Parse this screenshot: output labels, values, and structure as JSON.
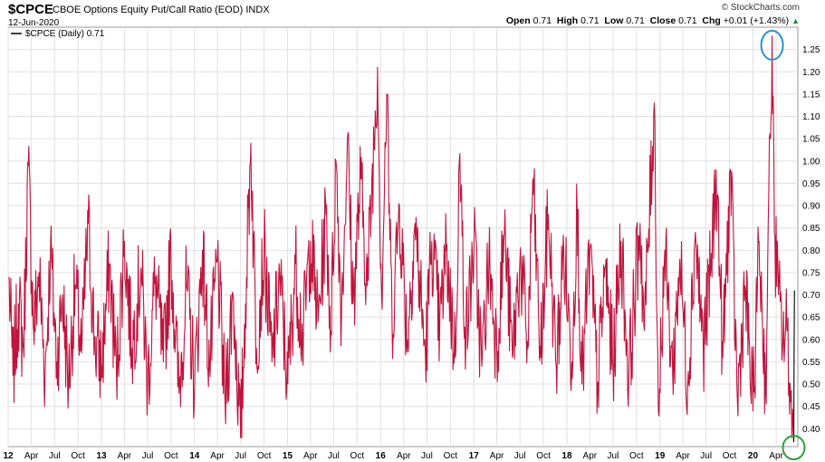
{
  "header": {
    "symbol": "$CPCE",
    "subtitle": "CBOE Options Equity Put/Call Ratio (EOD)  INDX",
    "date": "12-Jun-2020",
    "watermark": "© StockCharts.com",
    "open_label": "Open",
    "open_value": "0.71",
    "high_label": "High",
    "high_value": "0.71",
    "low_label": "Low",
    "low_value": "0.71",
    "close_label": "Close",
    "close_value": "0.71",
    "chg_label": "Chg",
    "chg_value": "+0.01 (+1.43%)",
    "chg_arrow": "▲"
  },
  "colors": {
    "line": "#c0143c",
    "grid": "#e0e0e0",
    "highlight_top": "#2a8fd6",
    "highlight_bottom": "#2e9e3e"
  },
  "chart_data": {
    "type": "line",
    "title": "CBOE Options Equity Put/Call Ratio (EOD)",
    "series": [
      {
        "name": "$CPCE (Daily) 0.71",
        "points": [
          [
            "2012-01-03",
            0.74
          ],
          [
            "2012-01-20",
            0.52
          ],
          [
            "2012-02-10",
            0.68
          ],
          [
            "2012-03-01",
            0.58
          ],
          [
            "2012-03-20",
            0.99
          ],
          [
            "2012-04-10",
            0.62
          ],
          [
            "2012-05-01",
            0.75
          ],
          [
            "2012-05-25",
            0.52
          ],
          [
            "2012-06-15",
            0.8
          ],
          [
            "2012-07-10",
            0.55
          ],
          [
            "2012-08-01",
            0.7
          ],
          [
            "2012-08-25",
            0.5
          ],
          [
            "2012-09-20",
            0.72
          ],
          [
            "2012-10-15",
            0.57
          ],
          [
            "2012-11-10",
            0.86
          ],
          [
            "2012-12-05",
            0.6
          ],
          [
            "2013-01-02",
            0.54
          ],
          [
            "2013-02-01",
            0.77
          ],
          [
            "2013-03-01",
            0.52
          ],
          [
            "2013-04-01",
            0.82
          ],
          [
            "2013-05-01",
            0.58
          ],
          [
            "2013-06-05",
            0.76
          ],
          [
            "2013-07-01",
            0.5
          ],
          [
            "2013-08-01",
            0.74
          ],
          [
            "2013-09-01",
            0.55
          ],
          [
            "2013-10-01",
            0.79
          ],
          [
            "2013-11-01",
            0.48
          ],
          [
            "2013-12-01",
            0.72
          ],
          [
            "2014-01-02",
            0.5
          ],
          [
            "2014-02-01",
            0.8
          ],
          [
            "2014-03-01",
            0.54
          ],
          [
            "2014-04-01",
            0.78
          ],
          [
            "2014-05-01",
            0.46
          ],
          [
            "2014-06-01",
            0.7
          ],
          [
            "2014-07-01",
            0.38
          ],
          [
            "2014-07-20",
            0.68
          ],
          [
            "2014-08-10",
            1.04
          ],
          [
            "2014-09-01",
            0.58
          ],
          [
            "2014-10-01",
            0.8
          ],
          [
            "2014-11-01",
            0.55
          ],
          [
            "2014-12-01",
            0.74
          ],
          [
            "2015-01-02",
            0.5
          ],
          [
            "2015-02-01",
            0.77
          ],
          [
            "2015-03-01",
            0.6
          ],
          [
            "2015-04-01",
            0.82
          ],
          [
            "2015-05-01",
            0.64
          ],
          [
            "2015-06-01",
            0.88
          ],
          [
            "2015-06-20",
            0.62
          ],
          [
            "2015-07-10",
            1.0
          ],
          [
            "2015-08-01",
            0.66
          ],
          [
            "2015-08-24",
            1.05
          ],
          [
            "2015-09-15",
            0.68
          ],
          [
            "2015-10-15",
            0.96
          ],
          [
            "2015-11-10",
            0.72
          ],
          [
            "2015-12-20",
            1.21
          ],
          [
            "2016-01-05",
            0.7
          ],
          [
            "2016-01-25",
            1.15
          ],
          [
            "2016-02-15",
            0.64
          ],
          [
            "2016-03-15",
            0.9
          ],
          [
            "2016-04-15",
            0.6
          ],
          [
            "2016-05-15",
            0.86
          ],
          [
            "2016-06-25",
            0.56
          ],
          [
            "2016-07-20",
            0.82
          ],
          [
            "2016-08-20",
            0.62
          ],
          [
            "2016-09-15",
            0.8
          ],
          [
            "2016-10-20",
            0.56
          ],
          [
            "2016-11-05",
            1.0
          ],
          [
            "2016-12-01",
            0.6
          ],
          [
            "2017-01-02",
            0.82
          ],
          [
            "2017-02-01",
            0.54
          ],
          [
            "2017-03-01",
            0.78
          ],
          [
            "2017-04-01",
            0.58
          ],
          [
            "2017-05-01",
            0.84
          ],
          [
            "2017-06-01",
            0.56
          ],
          [
            "2017-07-01",
            0.78
          ],
          [
            "2017-08-01",
            0.58
          ],
          [
            "2017-08-20",
            0.96
          ],
          [
            "2017-09-20",
            0.56
          ],
          [
            "2017-10-20",
            0.88
          ],
          [
            "2017-11-20",
            0.54
          ],
          [
            "2017-12-20",
            0.8
          ],
          [
            "2018-01-20",
            0.55
          ],
          [
            "2018-02-10",
            0.9
          ],
          [
            "2018-03-01",
            0.5
          ],
          [
            "2018-04-01",
            0.8
          ],
          [
            "2018-05-01",
            0.5
          ],
          [
            "2018-06-01",
            0.76
          ],
          [
            "2018-07-01",
            0.54
          ],
          [
            "2018-08-01",
            0.82
          ],
          [
            "2018-09-01",
            0.52
          ],
          [
            "2018-10-15",
            0.86
          ],
          [
            "2018-11-01",
            0.62
          ],
          [
            "2018-12-10",
            1.13
          ],
          [
            "2018-12-26",
            0.44
          ],
          [
            "2019-01-20",
            0.8
          ],
          [
            "2019-02-20",
            0.52
          ],
          [
            "2019-03-20",
            0.78
          ],
          [
            "2019-04-20",
            0.5
          ],
          [
            "2019-05-20",
            0.84
          ],
          [
            "2019-06-20",
            0.58
          ],
          [
            "2019-07-20",
            0.76
          ],
          [
            "2019-08-10",
            0.98
          ],
          [
            "2019-09-05",
            0.56
          ],
          [
            "2019-10-05",
            0.98
          ],
          [
            "2019-11-01",
            0.46
          ],
          [
            "2019-12-01",
            0.72
          ],
          [
            "2020-01-01",
            0.44
          ],
          [
            "2020-01-25",
            0.82
          ],
          [
            "2020-02-20",
            0.48
          ],
          [
            "2020-03-01",
            0.86
          ],
          [
            "2020-03-10",
            1.05
          ],
          [
            "2020-03-16",
            1.28
          ],
          [
            "2020-03-25",
            0.84
          ],
          [
            "2020-04-10",
            0.7
          ],
          [
            "2020-04-28",
            0.6
          ],
          [
            "2020-05-15",
            0.62
          ],
          [
            "2020-05-28",
            0.46
          ],
          [
            "2020-06-09",
            0.37
          ],
          [
            "2020-06-12",
            0.71
          ]
        ]
      }
    ],
    "x_ticks": [
      "12",
      "Apr",
      "Jul",
      "Oct",
      "13",
      "Apr",
      "Jul",
      "Oct",
      "14",
      "Apr",
      "Jul",
      "Oct",
      "15",
      "Apr",
      "Jul",
      "Oct",
      "16",
      "Apr",
      "Jul",
      "Oct",
      "17",
      "Apr",
      "Jul",
      "Oct",
      "18",
      "Apr",
      "Jul",
      "Oct",
      "19",
      "Apr",
      "Jul",
      "Oct",
      "20",
      "Apr"
    ],
    "y_ticks": [
      "0.40",
      "0.45",
      "0.50",
      "0.55",
      "0.60",
      "0.65",
      "0.70",
      "0.75",
      "0.80",
      "0.85",
      "0.90",
      "0.95",
      "1.00",
      "1.05",
      "1.10",
      "1.15",
      "1.20",
      "1.25"
    ],
    "ylim": [
      0.36,
      1.3
    ],
    "xlim": [
      "2012-01-01",
      "2020-06-25"
    ],
    "grid": true,
    "legend": "top-left",
    "annotations": [
      {
        "type": "ellipse",
        "at": [
          "2020-03-16",
          1.28
        ],
        "color": "#2a8fd6"
      },
      {
        "type": "ellipse",
        "at": [
          "2020-06-09",
          0.37
        ],
        "color": "#2e9e3e"
      }
    ]
  }
}
